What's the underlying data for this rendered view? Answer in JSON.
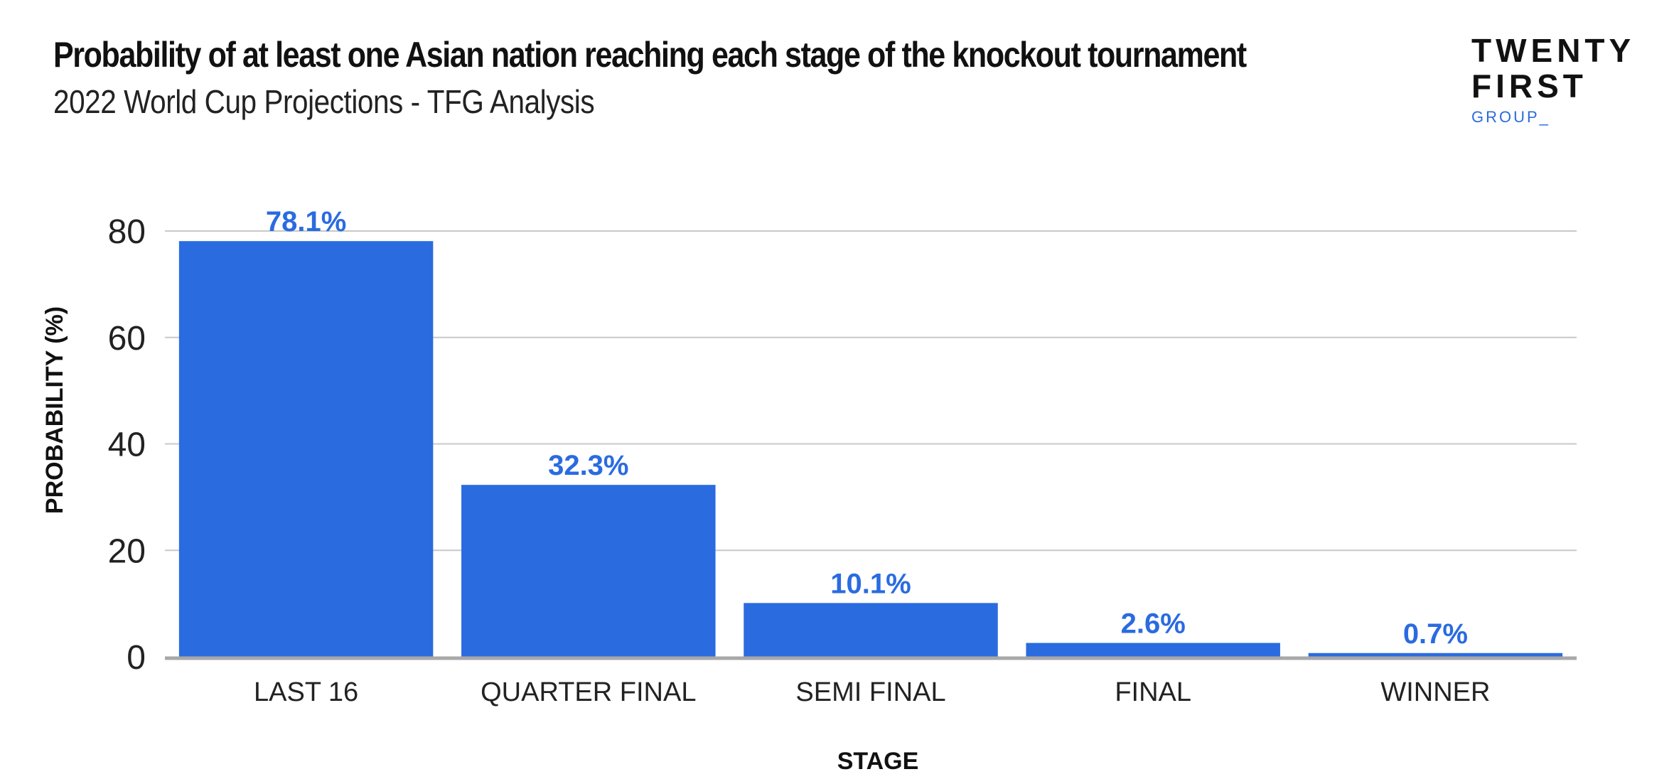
{
  "header": {
    "title": "Probability of at least one Asian nation reaching each stage of the knockout tournament",
    "subtitle": "2022 World Cup Projections - TFG Analysis"
  },
  "logo": {
    "line1": "TWENTY",
    "line2": "FIRST",
    "line3": "GROUP_"
  },
  "colors": {
    "bar": "#2a6be0",
    "label": "#2a6be0",
    "grid": "#c8c8c8",
    "baseline": "#a8a8a8"
  },
  "chart_data": {
    "type": "bar",
    "categories": [
      "LAST 16",
      "QUARTER FINAL",
      "SEMI FINAL",
      "FINAL",
      "WINNER"
    ],
    "values": [
      78.1,
      32.3,
      10.1,
      2.6,
      0.7
    ],
    "data_labels": [
      "78.1%",
      "32.3%",
      "10.1%",
      "2.6%",
      "0.7%"
    ],
    "title": "Probability of at least one Asian nation reaching each stage of the knockout tournament",
    "subtitle": "2022 World Cup Projections - TFG Analysis",
    "xlabel": "STAGE",
    "ylabel": "PROBABILITY (%)",
    "ylim": [
      0,
      80
    ],
    "yticks": [
      0,
      20,
      40,
      60,
      80
    ],
    "grid": true,
    "legend": "none"
  }
}
